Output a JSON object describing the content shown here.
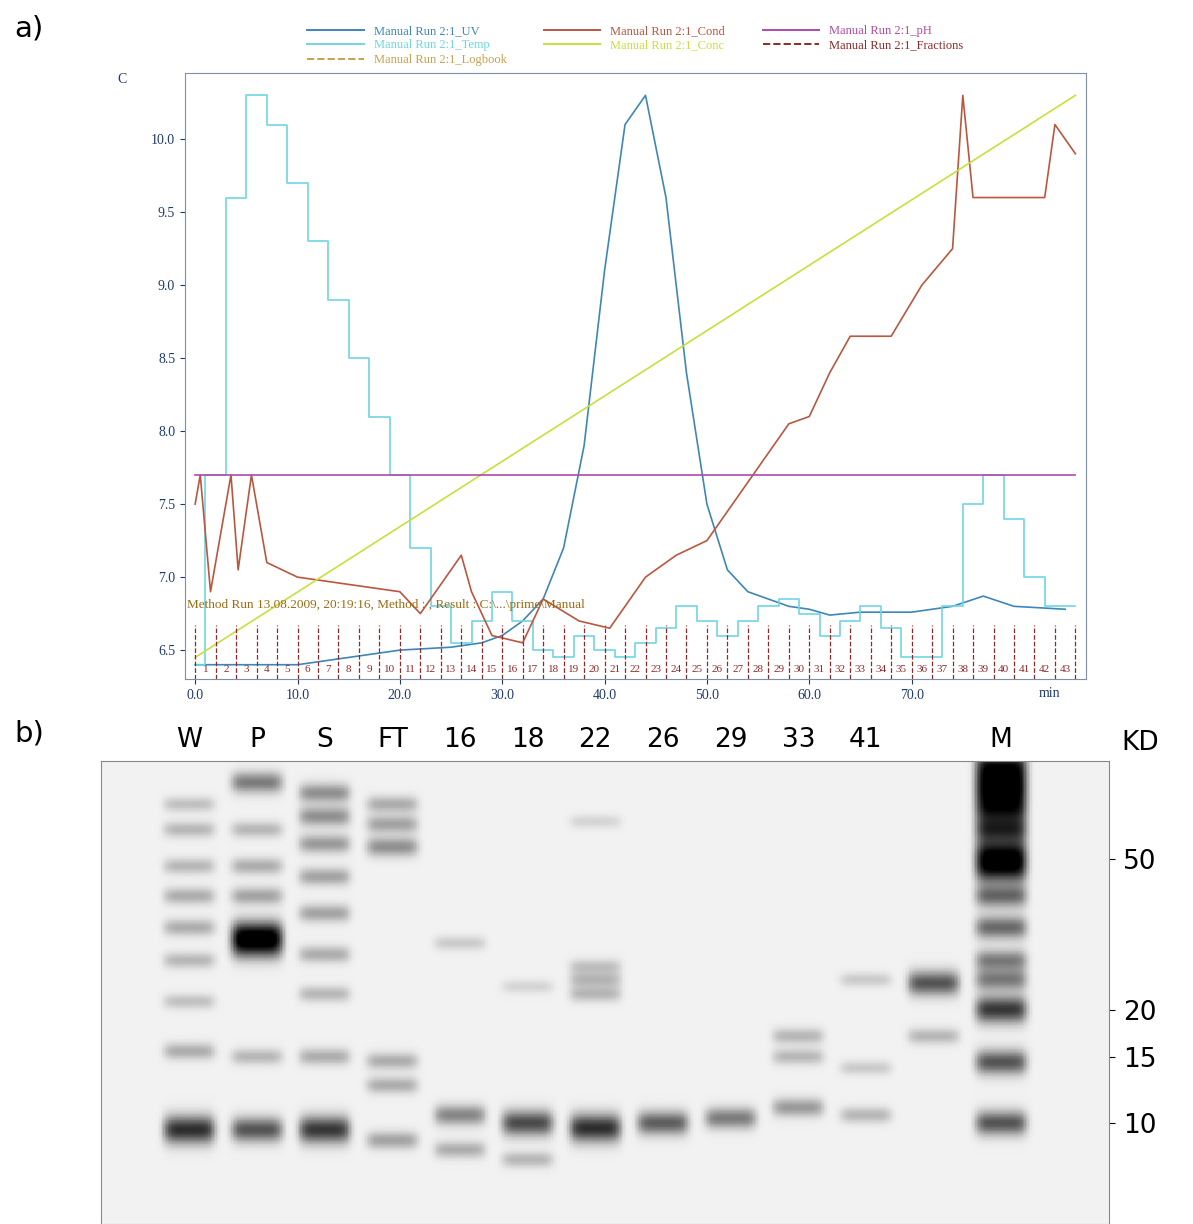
{
  "panel_labels": [
    "a)",
    "b)"
  ],
  "chart_data": {
    "type": "line",
    "ylabel": "C",
    "xlabel": "min",
    "xlim": [
      -1,
      87
    ],
    "ylim": [
      6.3,
      10.45
    ],
    "xticks": [
      0.0,
      10.0,
      20.0,
      30.0,
      40.0,
      50.0,
      60.0,
      70.0
    ],
    "yticks": [
      6.5,
      7.0,
      7.5,
      8.0,
      8.5,
      9.0,
      9.5,
      10.0
    ],
    "grid": false,
    "legend": "top",
    "annotations": [
      {
        "text": "Method Run 13.08.2009, 20:19:16, Method : , Result : C:\\...\\prime\\Manual",
        "x": -0.8,
        "y": 6.77,
        "color": "#9c6b12"
      }
    ],
    "fractions": {
      "x": [
        0,
        2,
        4,
        6,
        8,
        10,
        12,
        14,
        16,
        18,
        20,
        22,
        24,
        26,
        28,
        30,
        32,
        34,
        36,
        38,
        40,
        42,
        44,
        46,
        48,
        50,
        52,
        54,
        56,
        58,
        60,
        62,
        64,
        66,
        68,
        70,
        72,
        74,
        76,
        78,
        80,
        82,
        84,
        86
      ],
      "labels": [
        1,
        2,
        3,
        4,
        5,
        6,
        7,
        8,
        9,
        10,
        11,
        12,
        13,
        14,
        15,
        16,
        17,
        18,
        19,
        20,
        21,
        22,
        23,
        24,
        25,
        26,
        27,
        28,
        29,
        30,
        31,
        32,
        33,
        34,
        35,
        36,
        37,
        38,
        39,
        40,
        41,
        42,
        43
      ]
    },
    "series": [
      {
        "name": "Manual Run 2:1_UV",
        "color": "#3f86b8",
        "line_style": "solid",
        "x": [
          0,
          5,
          10,
          15,
          20,
          25,
          28,
          30,
          32,
          34,
          36,
          38,
          40,
          42,
          44,
          46,
          48,
          50,
          52,
          54,
          56,
          58,
          60,
          62,
          65,
          70,
          74,
          77,
          80,
          85
        ],
        "values": [
          6.4,
          6.4,
          6.4,
          6.45,
          6.5,
          6.52,
          6.55,
          6.6,
          6.7,
          6.85,
          7.2,
          7.9,
          9.1,
          10.1,
          10.3,
          9.6,
          8.4,
          7.5,
          7.05,
          6.9,
          6.85,
          6.8,
          6.78,
          6.74,
          6.76,
          6.76,
          6.8,
          6.87,
          6.8,
          6.78
        ]
      },
      {
        "name": "Manual Run 2:1_Temp",
        "color": "#6fd6e3",
        "line_style": "steps",
        "x": [
          0,
          2,
          4,
          6,
          8,
          10,
          12,
          14,
          16,
          18,
          20,
          22,
          24,
          26,
          28,
          30,
          32,
          34,
          36,
          38,
          40,
          42,
          44,
          46,
          48,
          50,
          52,
          54,
          56,
          58,
          60,
          62,
          64,
          66,
          68,
          70,
          72,
          74,
          76,
          78,
          80,
          82,
          84,
          86
        ],
        "values": [
          6.4,
          7.7,
          9.6,
          10.3,
          10.1,
          9.7,
          9.3,
          8.9,
          8.5,
          8.1,
          7.7,
          7.2,
          6.8,
          6.55,
          6.7,
          6.9,
          6.7,
          6.5,
          6.45,
          6.6,
          6.5,
          6.45,
          6.55,
          6.65,
          6.8,
          6.7,
          6.6,
          6.7,
          6.8,
          6.85,
          6.75,
          6.6,
          6.7,
          6.8,
          6.65,
          6.45,
          6.45,
          6.8,
          7.5,
          7.7,
          7.4,
          7.0,
          6.8,
          6.8
        ]
      },
      {
        "name": "Manual Run 2:1_Logbook",
        "color": "#c8a050",
        "line_style": "dashed",
        "type": "logbook"
      },
      {
        "name": "Manual Run 2:1_Cond",
        "color": "#b9573f",
        "line_style": "solid",
        "x": [
          0,
          0.5,
          1.5,
          3.5,
          4.2,
          5.5,
          7,
          10,
          15,
          20,
          22,
          26,
          27,
          29,
          32,
          34,
          37.5,
          40.5,
          44,
          47,
          50,
          53,
          58,
          60,
          62,
          64,
          68,
          71,
          74,
          75,
          76,
          83,
          84,
          86
        ],
        "values": [
          7.5,
          7.7,
          6.9,
          7.7,
          7.05,
          7.7,
          7.1,
          7.0,
          6.95,
          6.9,
          6.75,
          7.15,
          6.9,
          6.6,
          6.55,
          6.85,
          6.7,
          6.65,
          7.0,
          7.15,
          7.25,
          7.55,
          8.05,
          8.1,
          8.4,
          8.65,
          8.65,
          9.0,
          9.25,
          10.3,
          9.6,
          9.6,
          10.1,
          9.9
        ]
      },
      {
        "name": "Manual Run 2:1_Conc",
        "color": "#c9df3c",
        "line_style": "solid",
        "x": [
          0,
          86
        ],
        "values": [
          6.45,
          10.3
        ]
      },
      {
        "name": "Manual Run 2:1_pH",
        "color": "#b04aa8",
        "line_style": "solid",
        "x": [
          0,
          86
        ],
        "values": [
          7.7,
          7.7
        ]
      },
      {
        "name": "Manual Run 2:1_Fractions",
        "color": "#8e2a2a",
        "line_style": "dashed",
        "type": "fractions"
      }
    ]
  },
  "gel": {
    "type": "gel",
    "axis_label": "KD",
    "log": "y",
    "ylim": [
      5.4,
      91
    ],
    "yticks": [
      50,
      20,
      15,
      10
    ],
    "lanes": [
      {
        "label": "W",
        "bands": [
          {
            "kd": 9.6,
            "intensity": 1.0
          },
          {
            "kd": 15.5,
            "intensity": 0.35
          },
          {
            "kd": 21,
            "intensity": 0.25
          },
          {
            "kd": 27,
            "intensity": 0.3
          },
          {
            "kd": 33,
            "intensity": 0.35
          },
          {
            "kd": 40,
            "intensity": 0.35
          },
          {
            "kd": 48,
            "intensity": 0.3
          },
          {
            "kd": 60,
            "intensity": 0.3
          },
          {
            "kd": 70,
            "intensity": 0.25
          }
        ]
      },
      {
        "label": "P",
        "bands": [
          {
            "kd": 9.6,
            "intensity": 0.8
          },
          {
            "kd": 15,
            "intensity": 0.3
          },
          {
            "kd": 29.5,
            "intensity": 0.95
          },
          {
            "kd": 32,
            "intensity": 0.9
          },
          {
            "kd": 40,
            "intensity": 0.4
          },
          {
            "kd": 48,
            "intensity": 0.35
          },
          {
            "kd": 60,
            "intensity": 0.3
          },
          {
            "kd": 80,
            "intensity": 0.6
          }
        ]
      },
      {
        "label": "S",
        "bands": [
          {
            "kd": 9.6,
            "intensity": 0.95
          },
          {
            "kd": 15,
            "intensity": 0.35
          },
          {
            "kd": 22,
            "intensity": 0.3
          },
          {
            "kd": 28,
            "intensity": 0.35
          },
          {
            "kd": 36,
            "intensity": 0.4
          },
          {
            "kd": 45,
            "intensity": 0.4
          },
          {
            "kd": 55,
            "intensity": 0.45
          },
          {
            "kd": 65,
            "intensity": 0.5
          },
          {
            "kd": 75,
            "intensity": 0.5
          }
        ]
      },
      {
        "label": "FT",
        "bands": [
          {
            "kd": 9.0,
            "intensity": 0.4
          },
          {
            "kd": 12.6,
            "intensity": 0.35
          },
          {
            "kd": 14.6,
            "intensity": 0.35
          },
          {
            "kd": 54,
            "intensity": 0.5
          },
          {
            "kd": 62,
            "intensity": 0.4
          },
          {
            "kd": 70,
            "intensity": 0.35
          }
        ]
      },
      {
        "label": "16",
        "bands": [
          {
            "kd": 10.5,
            "intensity": 0.55
          },
          {
            "kd": 8.5,
            "intensity": 0.35
          },
          {
            "kd": 30,
            "intensity": 0.2
          }
        ]
      },
      {
        "label": "18",
        "bands": [
          {
            "kd": 10,
            "intensity": 0.85
          },
          {
            "kd": 8,
            "intensity": 0.3
          },
          {
            "kd": 23,
            "intensity": 0.15
          }
        ]
      },
      {
        "label": "22",
        "bands": [
          {
            "kd": 9.7,
            "intensity": 1.0
          },
          {
            "kd": 22,
            "intensity": 0.3
          },
          {
            "kd": 24,
            "intensity": 0.3
          },
          {
            "kd": 26,
            "intensity": 0.25
          },
          {
            "kd": 63,
            "intensity": 0.15
          }
        ]
      },
      {
        "label": "26",
        "bands": [
          {
            "kd": 10,
            "intensity": 0.75
          }
        ]
      },
      {
        "label": "29",
        "bands": [
          {
            "kd": 10.3,
            "intensity": 0.6
          }
        ]
      },
      {
        "label": "33",
        "bands": [
          {
            "kd": 11,
            "intensity": 0.45
          },
          {
            "kd": 15,
            "intensity": 0.3
          },
          {
            "kd": 17,
            "intensity": 0.3
          }
        ]
      },
      {
        "label": "41",
        "bands": [
          {
            "kd": 10.5,
            "intensity": 0.3
          },
          {
            "kd": 14,
            "intensity": 0.2
          },
          {
            "kd": 24,
            "intensity": 0.2
          }
        ]
      },
      {
        "label": null,
        "bands": [
          {
            "kd": 23.5,
            "intensity": 0.8
          },
          {
            "kd": 17,
            "intensity": 0.3
          }
        ]
      },
      {
        "label": "M",
        "bands": [
          {
            "kd": 90,
            "intensity": 0.9
          },
          {
            "kd": 82,
            "intensity": 0.9
          },
          {
            "kd": 75,
            "intensity": 0.9
          },
          {
            "kd": 68,
            "intensity": 0.95
          },
          {
            "kd": 60,
            "intensity": 0.95
          },
          {
            "kd": 52,
            "intensity": 1.0
          },
          {
            "kd": 47,
            "intensity": 1.0
          },
          {
            "kd": 40,
            "intensity": 0.7
          },
          {
            "kd": 33,
            "intensity": 0.7
          },
          {
            "kd": 27,
            "intensity": 0.6
          },
          {
            "kd": 24,
            "intensity": 0.6
          },
          {
            "kd": 20,
            "intensity": 0.95
          },
          {
            "kd": 14.5,
            "intensity": 0.8
          },
          {
            "kd": 10,
            "intensity": 0.8
          }
        ]
      }
    ]
  }
}
